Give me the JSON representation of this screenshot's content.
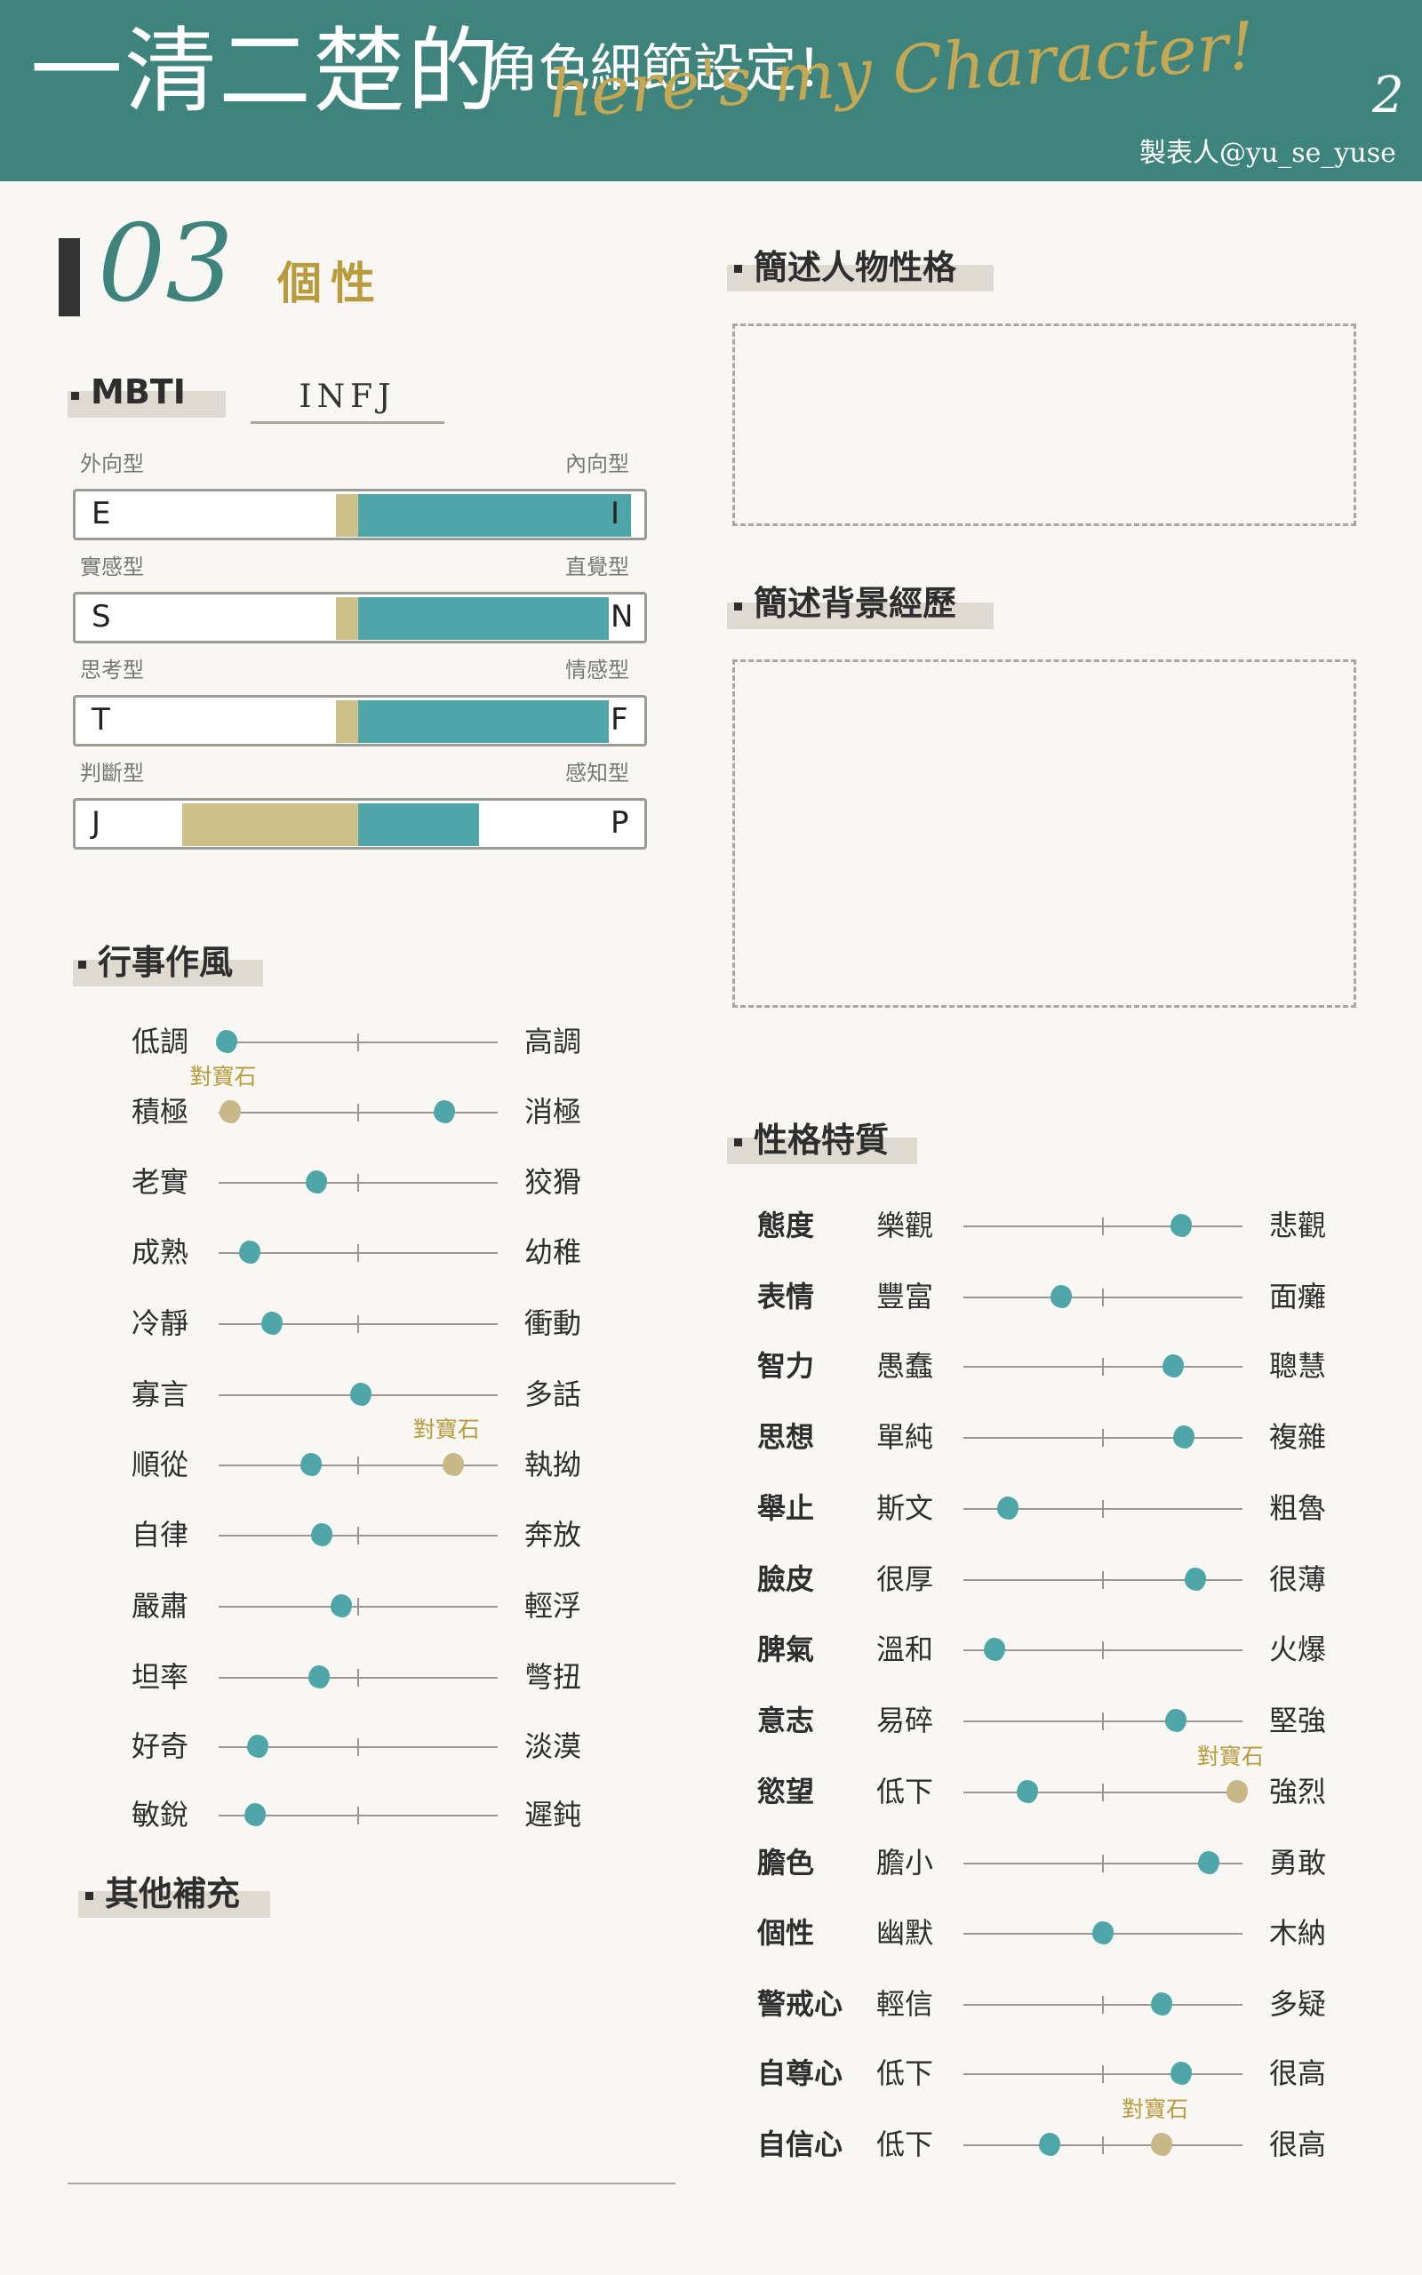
{
  "header": {
    "title": "一清二楚的",
    "subtitle": "角色細節設定！",
    "script": "here's my Character!",
    "page_number": "2",
    "credit": "製表人@yu_se_yuse",
    "bg_color": "#3f837d"
  },
  "section": {
    "number": "03",
    "label": "個性"
  },
  "mbti": {
    "label": "MBTI",
    "value": "INFJ",
    "axes": [
      {
        "left_type": "外向型",
        "right_type": "內向型",
        "left_letter": "E",
        "right_letter": "I",
        "lean": "right",
        "strength": 0.48
      },
      {
        "left_type": "實感型",
        "right_type": "直覺型",
        "left_letter": "S",
        "right_letter": "N",
        "lean": "right",
        "strength": 0.44
      },
      {
        "left_type": "思考型",
        "right_type": "情感型",
        "left_letter": "T",
        "right_letter": "F",
        "lean": "right",
        "strength": 0.44
      },
      {
        "left_type": "判斷型",
        "right_type": "感知型",
        "left_letter": "J",
        "right_letter": "P",
        "lean": "left",
        "strength": 0.31
      }
    ]
  },
  "style": {
    "label": "行事作風",
    "items": [
      {
        "left": "低調",
        "right": "高調",
        "value": 0.03
      },
      {
        "left": "積極",
        "right": "消極",
        "value": 0.81,
        "partner_value": 0.04,
        "partner_label": "對寶石"
      },
      {
        "left": "老實",
        "right": "狡猾",
        "value": 0.35
      },
      {
        "left": "成熟",
        "right": "幼稚",
        "value": 0.11
      },
      {
        "left": "冷靜",
        "right": "衝動",
        "value": 0.19
      },
      {
        "left": "寡言",
        "right": "多話",
        "value": 0.51
      },
      {
        "left": "順從",
        "right": "執拗",
        "value": 0.33,
        "partner_value": 0.84,
        "partner_label": "對寶石"
      },
      {
        "left": "自律",
        "right": "奔放",
        "value": 0.37
      },
      {
        "left": "嚴肅",
        "right": "輕浮",
        "value": 0.44
      },
      {
        "left": "坦率",
        "right": "彆扭",
        "value": 0.36
      },
      {
        "left": "好奇",
        "right": "淡漠",
        "value": 0.14
      },
      {
        "left": "敏銳",
        "right": "遲鈍",
        "value": 0.13
      }
    ]
  },
  "extra": {
    "label": "其他補充"
  },
  "summary": {
    "label": "簡述人物性格"
  },
  "background": {
    "label": "簡述背景經歷"
  },
  "traits": {
    "label": "性格特質",
    "items": [
      {
        "name": "態度",
        "left": "樂觀",
        "right": "悲觀",
        "value": 0.78
      },
      {
        "name": "表情",
        "left": "豐富",
        "right": "面癱",
        "value": 0.35
      },
      {
        "name": "智力",
        "left": "愚蠢",
        "right": "聰慧",
        "value": 0.75
      },
      {
        "name": "思想",
        "left": "單純",
        "right": "複雜",
        "value": 0.79
      },
      {
        "name": "舉止",
        "left": "斯文",
        "right": "粗魯",
        "value": 0.16
      },
      {
        "name": "臉皮",
        "left": "很厚",
        "right": "很薄",
        "value": 0.83
      },
      {
        "name": "脾氣",
        "left": "溫和",
        "right": "火爆",
        "value": 0.11
      },
      {
        "name": "意志",
        "left": "易碎",
        "right": "堅強",
        "value": 0.76
      },
      {
        "name": "慾望",
        "left": "低下",
        "right": "強烈",
        "value": 0.23,
        "partner_value": 0.98,
        "partner_label": "對寶石"
      },
      {
        "name": "膽色",
        "left": "膽小",
        "right": "勇敢",
        "value": 0.88
      },
      {
        "name": "個性",
        "left": "幽默",
        "right": "木納",
        "value": 0.5
      },
      {
        "name": "警戒心",
        "left": "輕信",
        "right": "多疑",
        "value": 0.71
      },
      {
        "name": "自尊心",
        "left": "低下",
        "right": "很高",
        "value": 0.78
      },
      {
        "name": "自信心",
        "left": "低下",
        "right": "很高",
        "value": 0.31,
        "partner_value": 0.71,
        "partner_label": "對寶石"
      }
    ]
  }
}
